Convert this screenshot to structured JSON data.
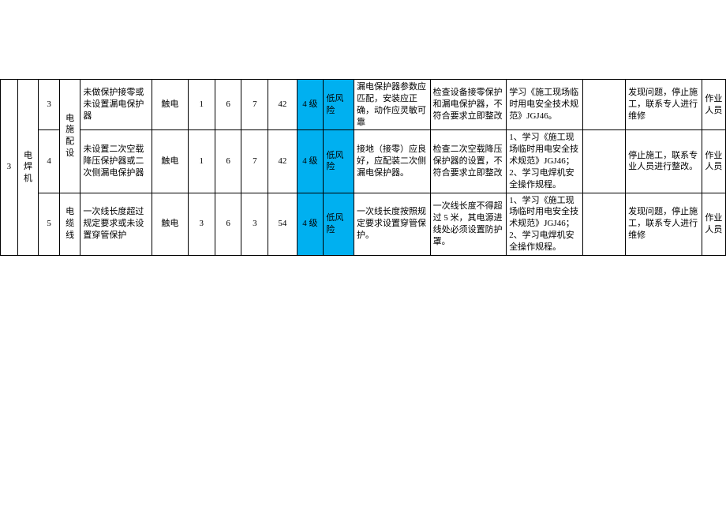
{
  "highlight_color": "#00b0f0",
  "border_color": "#000000",
  "background_color": "#ffffff",
  "group": {
    "index": "3",
    "equipment": "电焊机",
    "part1": "电施配设",
    "part2": "电缆线"
  },
  "rows": [
    {
      "idx": "3",
      "hazard": "未做保护接零或未设置漏电保护器",
      "risk_type": "触电",
      "n1": "1",
      "n2": "6",
      "n3": "7",
      "n4": "42",
      "level": "4 级",
      "risk_level": "低风险",
      "measure1": "漏电保护器参数应匹配，安装应正确，动作应灵敏可靠",
      "measure2": "检查设备接零保护和漏电保护器，不符合要求立即整改",
      "measure3": "学习《施工现场临时用电安全技术规范》JGJ46。",
      "action": "发现问题，停止施工，联系专人进行维修",
      "person": "作业人员"
    },
    {
      "idx": "4",
      "hazard": "未设置二次空载降压保护器或二次侧漏电保护器",
      "risk_type": "触电",
      "n1": "1",
      "n2": "6",
      "n3": "7",
      "n4": "42",
      "level": "4 级",
      "risk_level": "低风险",
      "measure1": "接地（接零）应良好，应配装二次侧漏电保护器。",
      "measure2": "检查二次空载降压保护器的设置，不符合要求立即整改",
      "measure3": "1、学习《施工现场临时用电安全技术规范》JGJ46；2、学习电焊机安全操作规程。",
      "action": "停止施工，联系专业人员进行整改。",
      "person": "作业人员"
    },
    {
      "idx": "5",
      "hazard": "一次线长度超过规定要求或未设置穿管保护",
      "risk_type": "触电",
      "n1": "3",
      "n2": "6",
      "n3": "3",
      "n4": "54",
      "level": "4 级",
      "risk_level": "低风险",
      "measure1": "一次线长度按照规定要求设置穿管保护。",
      "measure2": "一次线长度不得超过 5 米，其电源进线处必须设置防护罩。",
      "measure3": "1、学习《施工现场临时用电安全技术规范》JGJ46；2、学习电焊机安全操作规程。",
      "action": "发现问题，停止施工，联系专人进行维修",
      "person": "作业人员"
    }
  ]
}
